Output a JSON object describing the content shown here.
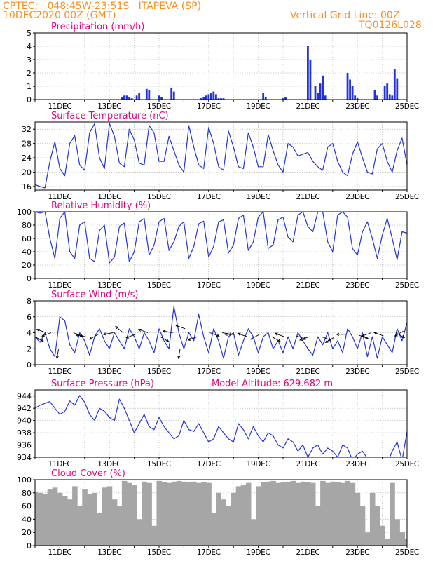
{
  "header": {
    "line1_left": "CPTEC:   048:45W-23:51S   ITAPEVA (SP)",
    "line2_left": "10DEC2020 00Z (GMT)",
    "line1_right": "Vertical Grid Line: 00Z",
    "line2_right": "TQ0126L028"
  },
  "colors": {
    "header": "#ff8c1a",
    "title": "#e6007e",
    "line": "#2233dd",
    "bar": "#2233dd",
    "cloud": "#a6a6a6",
    "arrow": "#000000"
  },
  "x_axis": {
    "start": "10DEC",
    "end": "25DEC",
    "date_labels": [
      "11DEC",
      "13DEC",
      "15DEC",
      "17DEC",
      "19DEC",
      "21DEC",
      "23DEC",
      "25DEC"
    ]
  },
  "chart_data": [
    {
      "type": "bar",
      "title": "Precipitation (mm/h)",
      "ylim": [
        0,
        5
      ],
      "yticks": [
        "0",
        "1",
        "2",
        "3",
        "4",
        "5"
      ],
      "x_days": [
        3.5,
        3.6,
        3.7,
        3.8,
        3.9,
        4.1,
        4.2,
        4.5,
        4.6,
        5.0,
        5.1,
        5.5,
        5.6,
        6.7,
        6.8,
        6.9,
        7.0,
        7.1,
        7.2,
        7.3,
        7.4,
        7.5,
        7.6,
        9.2,
        9.3,
        10.0,
        10.1,
        11.0,
        11.1,
        11.3,
        11.4,
        11.5,
        11.6,
        11.7,
        12.6,
        12.7,
        12.8,
        12.9,
        13.0,
        13.7,
        13.8,
        14.1,
        14.2,
        14.3,
        14.4,
        14.5,
        14.6
      ],
      "values": [
        0.2,
        0.3,
        0.3,
        0.2,
        0.1,
        0.3,
        0.5,
        0.8,
        0.7,
        0.3,
        0.2,
        0.9,
        0.6,
        0.1,
        0.2,
        0.3,
        0.4,
        0.5,
        0.6,
        0.4,
        0.1,
        0.1,
        0.1,
        0.5,
        0.2,
        0.1,
        0.2,
        4.0,
        3.0,
        1.0,
        0.5,
        1.2,
        1.8,
        0.3,
        2.0,
        1.5,
        1.0,
        0.3,
        0.1,
        0.7,
        0.3,
        1.0,
        1.2,
        0.4,
        0.3,
        2.3,
        1.6
      ]
    },
    {
      "type": "line",
      "title": "Surface Temperature (nC)",
      "ylim": [
        15,
        34
      ],
      "yticks": [
        "16",
        "20",
        "24",
        "28",
        "32"
      ],
      "x_days": [
        0.0,
        0.2,
        0.4,
        0.6,
        0.8,
        1.0,
        1.2,
        1.4,
        1.6,
        1.8,
        2.0,
        2.2,
        2.4,
        2.6,
        2.8,
        3.0,
        3.2,
        3.4,
        3.6,
        3.8,
        4.0,
        4.2,
        4.4,
        4.6,
        4.8,
        5.0,
        5.2,
        5.4,
        5.6,
        5.8,
        6.0,
        6.2,
        6.4,
        6.6,
        6.8,
        7.0,
        7.2,
        7.4,
        7.6,
        7.8,
        8.0,
        8.2,
        8.4,
        8.6,
        8.8,
        9.0,
        9.2,
        9.4,
        9.6,
        9.8,
        10.0,
        10.2,
        10.4,
        10.6,
        10.8,
        11.0,
        11.2,
        11.4,
        11.6,
        11.8,
        12.0,
        12.2,
        12.4,
        12.6,
        12.8,
        13.0,
        13.2,
        13.4,
        13.6,
        13.8,
        14.0,
        14.2,
        14.4,
        14.6,
        14.8,
        15.0
      ],
      "values": [
        16.5,
        16.0,
        15.6,
        23.0,
        28.5,
        21.0,
        19.0,
        28.0,
        30.2,
        22.0,
        20.5,
        31.0,
        33.5,
        24.0,
        21.0,
        33.6,
        30.0,
        22.5,
        21.5,
        32.0,
        29.0,
        22.5,
        22.0,
        33.0,
        31.0,
        23.0,
        23.0,
        30.0,
        26.0,
        22.0,
        20.0,
        33.0,
        27.0,
        22.0,
        21.0,
        32.5,
        28.0,
        21.5,
        20.5,
        31.5,
        27.0,
        21.5,
        21.0,
        31.0,
        27.0,
        21.5,
        21.5,
        30.5,
        26.0,
        22.0,
        20.0,
        28.0,
        27.0,
        24.5,
        25.0,
        25.5,
        23.0,
        21.5,
        20.5,
        27.0,
        28.0,
        23.0,
        20.0,
        19.0,
        25.0,
        28.5,
        24.0,
        20.0,
        19.5,
        26.5,
        28.0,
        23.0,
        20.0,
        26.0,
        29.5,
        22.0
      ]
    },
    {
      "type": "line",
      "title": "Relative Humidity (%)",
      "ylim": [
        0,
        100
      ],
      "yticks": [
        "0",
        "20",
        "40",
        "60",
        "80",
        "100"
      ],
      "x_days": [
        0.0,
        0.2,
        0.4,
        0.6,
        0.8,
        1.0,
        1.2,
        1.4,
        1.6,
        1.8,
        2.0,
        2.2,
        2.4,
        2.6,
        2.8,
        3.0,
        3.2,
        3.4,
        3.6,
        3.8,
        4.0,
        4.2,
        4.4,
        4.6,
        4.8,
        5.0,
        5.2,
        5.4,
        5.6,
        5.8,
        6.0,
        6.2,
        6.4,
        6.6,
        6.8,
        7.0,
        7.2,
        7.4,
        7.6,
        7.8,
        8.0,
        8.2,
        8.4,
        8.6,
        8.8,
        9.0,
        9.2,
        9.4,
        9.6,
        9.8,
        10.0,
        10.2,
        10.4,
        10.6,
        10.8,
        11.0,
        11.2,
        11.4,
        11.6,
        11.8,
        12.0,
        12.2,
        12.4,
        12.6,
        12.8,
        13.0,
        13.2,
        13.4,
        13.6,
        13.8,
        14.0,
        14.2,
        14.4,
        14.6,
        14.8,
        15.0
      ],
      "values": [
        100,
        98,
        100,
        60,
        30,
        90,
        100,
        40,
        30,
        80,
        85,
        30,
        25,
        72,
        80,
        23,
        32,
        78,
        83,
        25,
        40,
        85,
        90,
        35,
        50,
        85,
        90,
        42,
        55,
        78,
        85,
        30,
        48,
        82,
        86,
        32,
        48,
        85,
        88,
        38,
        50,
        90,
        95,
        42,
        55,
        92,
        100,
        45,
        50,
        88,
        92,
        62,
        55,
        95,
        100,
        78,
        70,
        100,
        100,
        55,
        40,
        95,
        100,
        92,
        45,
        35,
        70,
        85,
        60,
        30,
        65,
        90,
        60,
        28,
        70,
        68
      ]
    },
    {
      "type": "line",
      "title": "Surface Wind (m/s)",
      "ylim": [
        0,
        8
      ],
      "yticks": [
        "0",
        "2",
        "4",
        "6",
        "8"
      ],
      "x_days": [
        0.0,
        0.2,
        0.4,
        0.6,
        0.8,
        1.0,
        1.2,
        1.4,
        1.6,
        1.8,
        2.0,
        2.2,
        2.4,
        2.6,
        2.8,
        3.0,
        3.2,
        3.4,
        3.6,
        3.8,
        4.0,
        4.2,
        4.4,
        4.6,
        4.8,
        5.0,
        5.2,
        5.4,
        5.6,
        5.8,
        6.0,
        6.2,
        6.4,
        6.6,
        6.8,
        7.0,
        7.2,
        7.4,
        7.6,
        7.8,
        8.0,
        8.2,
        8.4,
        8.6,
        8.8,
        9.0,
        9.2,
        9.4,
        9.6,
        9.8,
        10.0,
        10.2,
        10.4,
        10.6,
        10.8,
        11.0,
        11.2,
        11.4,
        11.6,
        11.8,
        12.0,
        12.2,
        12.4,
        12.6,
        12.8,
        13.0,
        13.2,
        13.4,
        13.6,
        13.8,
        14.0,
        14.2,
        14.4,
        14.6,
        14.8,
        15.0
      ],
      "values": [
        3.5,
        2.8,
        4.0,
        2.0,
        1.0,
        6.0,
        5.5,
        2.5,
        1.5,
        4.0,
        3.0,
        1.2,
        3.5,
        4.5,
        3.0,
        2.0,
        4.0,
        3.0,
        2.0,
        4.5,
        3.5,
        2.0,
        4.0,
        3.0,
        1.5,
        4.5,
        3.0,
        2.0,
        7.3,
        4.0,
        2.0,
        4.0,
        3.0,
        6.3,
        3.5,
        1.5,
        4.5,
        3.0,
        0.8,
        3.5,
        4.0,
        1.2,
        3.0,
        4.5,
        3.5,
        1.5,
        3.5,
        4.0,
        2.0,
        3.0,
        1.5,
        3.5,
        2.0,
        4.0,
        3.0,
        2.0,
        1.2,
        3.5,
        2.5,
        4.0,
        2.0,
        3.0,
        1.5,
        4.5,
        3.5,
        2.0,
        4.0,
        1.0,
        3.5,
        0.8,
        3.5,
        2.5,
        1.5,
        4.5,
        3.0,
        5.3
      ],
      "arrow_x_days": [
        0.0,
        0.45,
        0.65,
        0.95,
        1.55,
        2.05,
        2.55,
        3.15,
        3.55,
        4.05,
        4.55,
        5.05,
        5.55,
        5.85,
        6.05,
        6.55,
        7.05,
        7.55,
        8.05,
        8.55,
        9.05,
        9.55,
        10.05,
        10.55,
        11.05,
        11.55,
        12.05,
        12.55,
        13.05,
        13.55,
        14.05,
        14.55,
        14.85
      ],
      "arrow_values": [
        3.5,
        4.0,
        4.0,
        2.0,
        4.0,
        3.5,
        3.8,
        4.0,
        4.0,
        3.8,
        4.0,
        3.5,
        4.0,
        2.0,
        4.5,
        3.5,
        4.0,
        4.0,
        3.8,
        3.5,
        3.8,
        3.5,
        3.5,
        3.6,
        3.5,
        3.5,
        3.4,
        3.8,
        3.7,
        4.0,
        3.6,
        4.0,
        4.2
      ]
    },
    {
      "type": "line",
      "title": "Surface Pressure (hPa)",
      "annotation": "Model Altitude:  629.682  m",
      "ylim": [
        934,
        945
      ],
      "yticks": [
        "934",
        "936",
        "938",
        "940",
        "942",
        "944"
      ],
      "x_days": [
        0.0,
        0.2,
        0.4,
        0.6,
        0.8,
        1.0,
        1.2,
        1.4,
        1.6,
        1.8,
        2.0,
        2.2,
        2.4,
        2.6,
        2.8,
        3.0,
        3.2,
        3.4,
        3.6,
        3.8,
        4.0,
        4.2,
        4.4,
        4.6,
        4.8,
        5.0,
        5.2,
        5.4,
        5.6,
        5.8,
        6.0,
        6.2,
        6.4,
        6.6,
        6.8,
        7.0,
        7.2,
        7.4,
        7.6,
        7.8,
        8.0,
        8.2,
        8.4,
        8.6,
        8.8,
        9.0,
        9.2,
        9.4,
        9.6,
        9.8,
        10.0,
        10.2,
        10.4,
        10.6,
        10.8,
        11.0,
        11.2,
        11.4,
        11.6,
        11.8,
        12.0,
        12.2,
        12.4,
        12.6,
        12.8,
        13.0,
        13.2,
        13.4,
        13.6,
        13.8,
        14.0,
        14.2,
        14.4,
        14.6,
        14.8,
        15.0
      ],
      "values": [
        942.0,
        942.5,
        942.8,
        943.1,
        942.0,
        941.0,
        941.5,
        943.2,
        942.5,
        944.1,
        943.0,
        941.0,
        940.0,
        942.0,
        941.5,
        940.5,
        940.0,
        943.5,
        942.0,
        940.0,
        938.0,
        939.5,
        941.0,
        939.0,
        938.5,
        940.5,
        939.0,
        938.0,
        937.0,
        937.5,
        940.0,
        938.5,
        938.2,
        939.5,
        938.0,
        936.5,
        937.0,
        939.0,
        938.0,
        937.0,
        936.5,
        939.5,
        938.5,
        937.0,
        939.0,
        937.5,
        936.5,
        938.0,
        937.5,
        936.0,
        935.5,
        937.0,
        936.5,
        935.0,
        936.0,
        934.0,
        935.5,
        936.0,
        934.5,
        935.5,
        935.0,
        934.0,
        936.0,
        935.5,
        933.5,
        934.5,
        935.0,
        933.8,
        933.5,
        934.0,
        933.5,
        933.0,
        935.0,
        936.5,
        933.5,
        938.2
      ]
    },
    {
      "type": "area",
      "title": "Cloud Cover (%)",
      "ylim": [
        0,
        100
      ],
      "yticks": [
        "0",
        "20",
        "40",
        "60",
        "80",
        "100"
      ],
      "x_days": [
        0.0,
        0.2,
        0.4,
        0.6,
        0.8,
        1.0,
        1.2,
        1.4,
        1.6,
        1.8,
        2.0,
        2.2,
        2.4,
        2.6,
        2.8,
        3.0,
        3.2,
        3.4,
        3.6,
        3.8,
        4.0,
        4.2,
        4.4,
        4.6,
        4.8,
        5.0,
        5.2,
        5.4,
        5.6,
        5.8,
        6.0,
        6.2,
        6.4,
        6.6,
        6.8,
        7.0,
        7.2,
        7.4,
        7.6,
        7.8,
        8.0,
        8.2,
        8.4,
        8.6,
        8.8,
        9.0,
        9.2,
        9.4,
        9.6,
        9.8,
        10.0,
        10.2,
        10.4,
        10.6,
        10.8,
        11.0,
        11.2,
        11.4,
        11.6,
        11.8,
        12.0,
        12.2,
        12.4,
        12.6,
        12.8,
        13.0,
        13.2,
        13.4,
        13.6,
        13.8,
        14.0,
        14.2,
        14.4,
        14.6,
        14.8,
        15.0
      ],
      "values": [
        82,
        80,
        78,
        85,
        88,
        80,
        75,
        70,
        90,
        60,
        85,
        78,
        80,
        50,
        88,
        90,
        70,
        60,
        98,
        95,
        92,
        40,
        97,
        95,
        30,
        98,
        96,
        95,
        97,
        98,
        97,
        96,
        97,
        95,
        96,
        95,
        50,
        80,
        70,
        60,
        80,
        90,
        92,
        95,
        40,
        90,
        96,
        97,
        98,
        95,
        96,
        97,
        98,
        95,
        97,
        96,
        95,
        60,
        98,
        95,
        97,
        96,
        95,
        98,
        95,
        80,
        60,
        20,
        80,
        60,
        30,
        10,
        95,
        40,
        20,
        10
      ]
    }
  ]
}
